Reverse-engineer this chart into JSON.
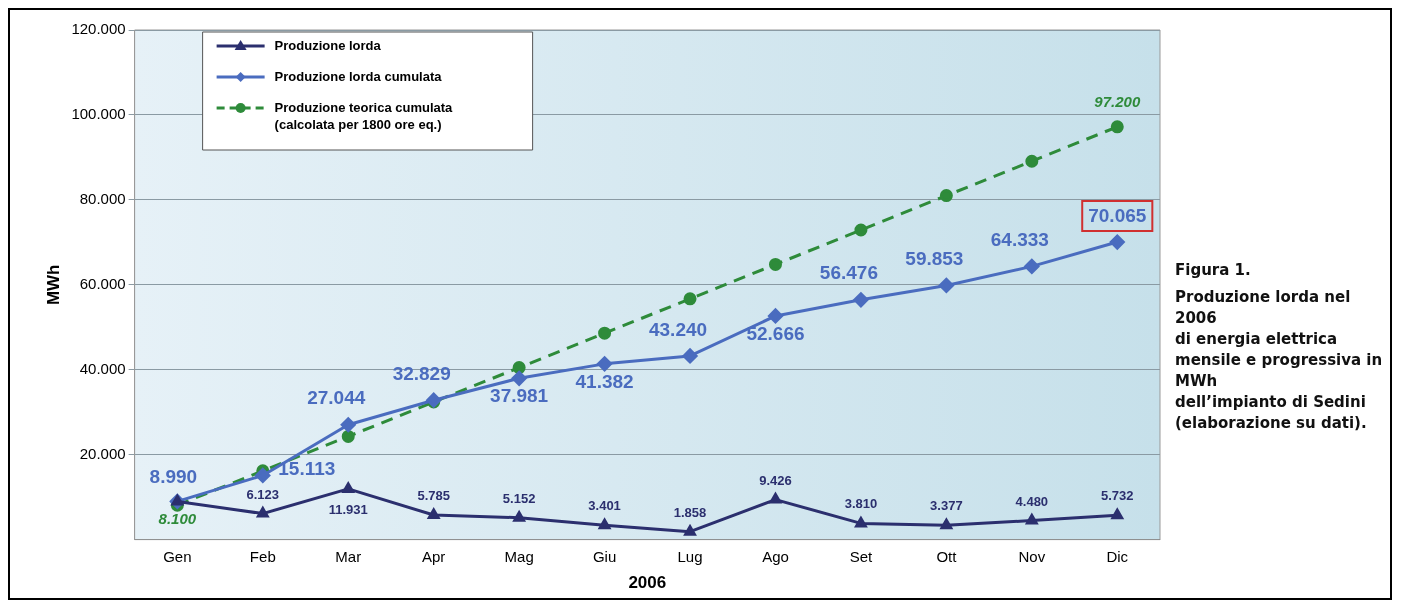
{
  "chart_data": {
    "type": "line",
    "categories": [
      "Gen",
      "Feb",
      "Mar",
      "Apr",
      "Mag",
      "Giu",
      "Lug",
      "Ago",
      "Set",
      "Ott",
      "Nov",
      "Dic"
    ],
    "series": [
      {
        "name": "Produzione lorda",
        "color": "#2b2f6e",
        "marker": "triangle",
        "values": [
          8990,
          6123,
          11931,
          5785,
          5152,
          3401,
          1858,
          9426,
          3810,
          3377,
          4480,
          5732
        ],
        "value_labels": [
          null,
          "6.123",
          "11.931",
          "5.785",
          "5.152",
          "3.401",
          "1.858",
          "9.426",
          "3.810",
          "3.377",
          "4.480",
          "5.732"
        ]
      },
      {
        "name": "Produzione lorda cumulata",
        "color": "#4a6cbf",
        "marker": "diamond",
        "values": [
          8990,
          15113,
          27044,
          32829,
          37981,
          41382,
          43240,
          52666,
          56476,
          59853,
          64333,
          70065
        ],
        "value_labels": [
          "8.990",
          "15.113",
          "27.044",
          "32.829",
          "37.981",
          "41.382",
          "43.240",
          "52.666",
          "56.476",
          "59.853",
          "64.333",
          "70.065"
        ]
      },
      {
        "name": "Produzione teorica cumulata (calcolata per 1800 ore eq.)",
        "color": "#2e8b3a",
        "marker": "circle",
        "line_style": "dashed",
        "values": [
          8100,
          16200,
          24300,
          32400,
          40500,
          48600,
          56700,
          64800,
          72900,
          81000,
          89100,
          97200
        ],
        "value_labels": [
          "8.100",
          null,
          null,
          null,
          null,
          null,
          null,
          null,
          null,
          null,
          null,
          "97.200"
        ]
      }
    ],
    "xlabel": "2006",
    "ylabel": "MWh",
    "ylim": [
      0,
      120000
    ],
    "yticks": [
      {
        "value": 20000,
        "label": "20.000"
      },
      {
        "value": 40000,
        "label": "40.000"
      },
      {
        "value": 60000,
        "label": "60.000"
      },
      {
        "value": 80000,
        "label": "80.000"
      },
      {
        "value": 100000,
        "label": "100.000"
      },
      {
        "value": 120000,
        "label": "120.000"
      }
    ],
    "grid": "y",
    "legend": "top left",
    "annotations": [
      "Figura 1.",
      "Produzione lorda nel 2006",
      "di energia elettrica",
      "mensile e progressiva in MWh",
      "dell’impianto di Sedini",
      "(elaborazione su dati)."
    ]
  }
}
